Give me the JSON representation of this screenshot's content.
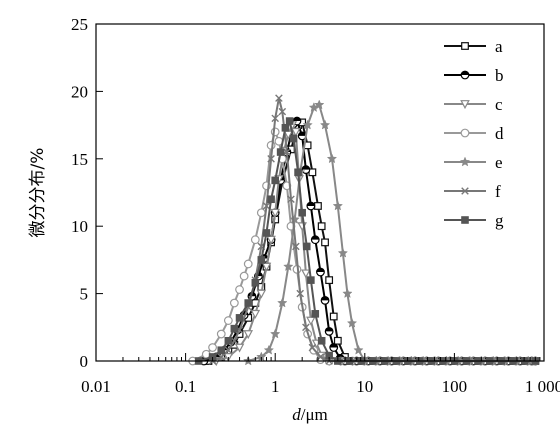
{
  "chart_data": {
    "type": "line",
    "xlabel_italic": "d",
    "xlabel_unit": "/μm",
    "ylabel": "微分分布/%",
    "xscale": "log",
    "xlim": [
      0.01,
      1000
    ],
    "ylim": [
      0,
      25
    ],
    "xticks": [
      {
        "value": 0.01,
        "label": "0.01"
      },
      {
        "value": 0.1,
        "label": "0.1"
      },
      {
        "value": 1,
        "label": "1"
      },
      {
        "value": 10,
        "label": "10"
      },
      {
        "value": 100,
        "label": "100"
      },
      {
        "value": 1000,
        "label": "1 000"
      }
    ],
    "yticks": [
      {
        "value": 0,
        "label": "0"
      },
      {
        "value": 5,
        "label": "5"
      },
      {
        "value": 10,
        "label": "10"
      },
      {
        "value": 15,
        "label": "15"
      },
      {
        "value": 20,
        "label": "20"
      },
      {
        "value": 25,
        "label": "25"
      }
    ],
    "legend_position": "top-right",
    "series": [
      {
        "name": "a",
        "color": "#111111",
        "marker": "square-open",
        "points": [
          [
            0.18,
            0
          ],
          [
            0.25,
            0.3
          ],
          [
            0.3,
            0.7
          ],
          [
            0.35,
            1.2
          ],
          [
            0.4,
            2
          ],
          [
            0.5,
            3.2
          ],
          [
            0.6,
            4.3
          ],
          [
            0.7,
            5.5
          ],
          [
            0.8,
            7
          ],
          [
            0.9,
            8.8
          ],
          [
            1,
            10.5
          ],
          [
            1.2,
            13.3
          ],
          [
            1.5,
            15.7
          ],
          [
            1.8,
            17.5
          ],
          [
            2,
            17.7
          ],
          [
            2.3,
            16
          ],
          [
            2.6,
            14
          ],
          [
            3,
            11.5
          ],
          [
            3.3,
            10
          ],
          [
            3.6,
            8.8
          ],
          [
            4,
            6
          ],
          [
            4.5,
            3.3
          ],
          [
            5,
            1.5
          ],
          [
            6,
            0.3
          ],
          [
            7,
            0
          ],
          [
            800,
            0
          ]
        ]
      },
      {
        "name": "b",
        "color": "#000000",
        "marker": "circle-half",
        "points": [
          [
            0.16,
            0
          ],
          [
            0.22,
            0.3
          ],
          [
            0.27,
            0.8
          ],
          [
            0.32,
            1.4
          ],
          [
            0.38,
            2.3
          ],
          [
            0.45,
            3.4
          ],
          [
            0.55,
            4.8
          ],
          [
            0.65,
            6.3
          ],
          [
            0.75,
            7.6
          ],
          [
            0.9,
            9
          ],
          [
            1,
            11
          ],
          [
            1.15,
            13.4
          ],
          [
            1.35,
            15.5
          ],
          [
            1.6,
            17.6
          ],
          [
            1.75,
            17.8
          ],
          [
            2,
            16.7
          ],
          [
            2.2,
            14.2
          ],
          [
            2.5,
            11.5
          ],
          [
            2.8,
            9
          ],
          [
            3.2,
            6.6
          ],
          [
            3.6,
            4.5
          ],
          [
            4,
            2.2
          ],
          [
            4.5,
            1
          ],
          [
            5.3,
            0.2
          ],
          [
            6,
            0
          ],
          [
            800,
            0
          ]
        ]
      },
      {
        "name": "c",
        "color": "#888888",
        "marker": "triangle-down",
        "points": [
          [
            0.22,
            0
          ],
          [
            0.3,
            0.3
          ],
          [
            0.4,
            1
          ],
          [
            0.5,
            2
          ],
          [
            0.6,
            3.5
          ],
          [
            0.7,
            5
          ],
          [
            0.8,
            7
          ],
          [
            0.9,
            9
          ],
          [
            1,
            11
          ],
          [
            1.1,
            13.5
          ],
          [
            1.25,
            15.6
          ],
          [
            1.4,
            16.8
          ],
          [
            1.55,
            17.5
          ],
          [
            1.7,
            17
          ],
          [
            1.85,
            13.5
          ],
          [
            2,
            10
          ],
          [
            2.2,
            6.5
          ],
          [
            2.5,
            3
          ],
          [
            2.9,
            1.3
          ],
          [
            3.3,
            0.4
          ],
          [
            4,
            0
          ],
          [
            800,
            0
          ]
        ]
      },
      {
        "name": "d",
        "color": "#999999",
        "marker": "circle-open",
        "points": [
          [
            0.12,
            0
          ],
          [
            0.17,
            0.5
          ],
          [
            0.2,
            1
          ],
          [
            0.25,
            2
          ],
          [
            0.3,
            3
          ],
          [
            0.35,
            4.3
          ],
          [
            0.4,
            5.3
          ],
          [
            0.45,
            6.3
          ],
          [
            0.5,
            7.2
          ],
          [
            0.6,
            9
          ],
          [
            0.7,
            11
          ],
          [
            0.8,
            13
          ],
          [
            0.9,
            16
          ],
          [
            1,
            17
          ],
          [
            1.1,
            16.3
          ],
          [
            1.2,
            15
          ],
          [
            1.35,
            13
          ],
          [
            1.5,
            10
          ],
          [
            1.75,
            6.8
          ],
          [
            2,
            4
          ],
          [
            2.3,
            2
          ],
          [
            2.7,
            0.8
          ],
          [
            3.2,
            0.1
          ],
          [
            4,
            0
          ],
          [
            800,
            0
          ]
        ]
      },
      {
        "name": "e",
        "color": "#888888",
        "marker": "star",
        "points": [
          [
            0.5,
            0
          ],
          [
            0.7,
            0.3
          ],
          [
            0.85,
            0.8
          ],
          [
            1,
            2
          ],
          [
            1.2,
            4.3
          ],
          [
            1.4,
            7
          ],
          [
            1.65,
            10.5
          ],
          [
            1.9,
            14
          ],
          [
            2.3,
            17.5
          ],
          [
            2.7,
            18.8
          ],
          [
            3.1,
            19
          ],
          [
            3.6,
            17.5
          ],
          [
            4.3,
            15
          ],
          [
            5,
            11.5
          ],
          [
            5.7,
            8
          ],
          [
            6.4,
            5
          ],
          [
            7.2,
            2.8
          ],
          [
            8.5,
            0.8
          ],
          [
            10,
            0
          ],
          [
            800,
            0
          ]
        ]
      },
      {
        "name": "f",
        "color": "#777777",
        "marker": "x",
        "points": [
          [
            0.2,
            0
          ],
          [
            0.25,
            0.3
          ],
          [
            0.3,
            0.8
          ],
          [
            0.35,
            1.5
          ],
          [
            0.4,
            2.3
          ],
          [
            0.5,
            4
          ],
          [
            0.6,
            6
          ],
          [
            0.7,
            8.5
          ],
          [
            0.8,
            11.5
          ],
          [
            0.9,
            15
          ],
          [
            1,
            18
          ],
          [
            1.1,
            19.5
          ],
          [
            1.2,
            18.5
          ],
          [
            1.35,
            15.5
          ],
          [
            1.5,
            12
          ],
          [
            1.7,
            8.5
          ],
          [
            1.9,
            5
          ],
          [
            2.2,
            2.5
          ],
          [
            2.6,
            1
          ],
          [
            3.2,
            0.3
          ],
          [
            4,
            0
          ],
          [
            800,
            0
          ]
        ]
      },
      {
        "name": "g",
        "color": "#555555",
        "marker": "square-filled",
        "points": [
          [
            0.14,
            0
          ],
          [
            0.2,
            0.3
          ],
          [
            0.25,
            0.8
          ],
          [
            0.3,
            1.5
          ],
          [
            0.35,
            2.4
          ],
          [
            0.4,
            3.2
          ],
          [
            0.5,
            4.3
          ],
          [
            0.6,
            5.8
          ],
          [
            0.7,
            7.5
          ],
          [
            0.8,
            9.5
          ],
          [
            0.9,
            12
          ],
          [
            1,
            13.4
          ],
          [
            1.15,
            15.5
          ],
          [
            1.3,
            17.3
          ],
          [
            1.45,
            17.8
          ],
          [
            1.6,
            16.5
          ],
          [
            1.8,
            14
          ],
          [
            2,
            11
          ],
          [
            2.25,
            8.5
          ],
          [
            2.5,
            6
          ],
          [
            2.8,
            3.5
          ],
          [
            3.3,
            1.5
          ],
          [
            4,
            0.4
          ],
          [
            5,
            0
          ],
          [
            800,
            0
          ]
        ]
      }
    ]
  }
}
